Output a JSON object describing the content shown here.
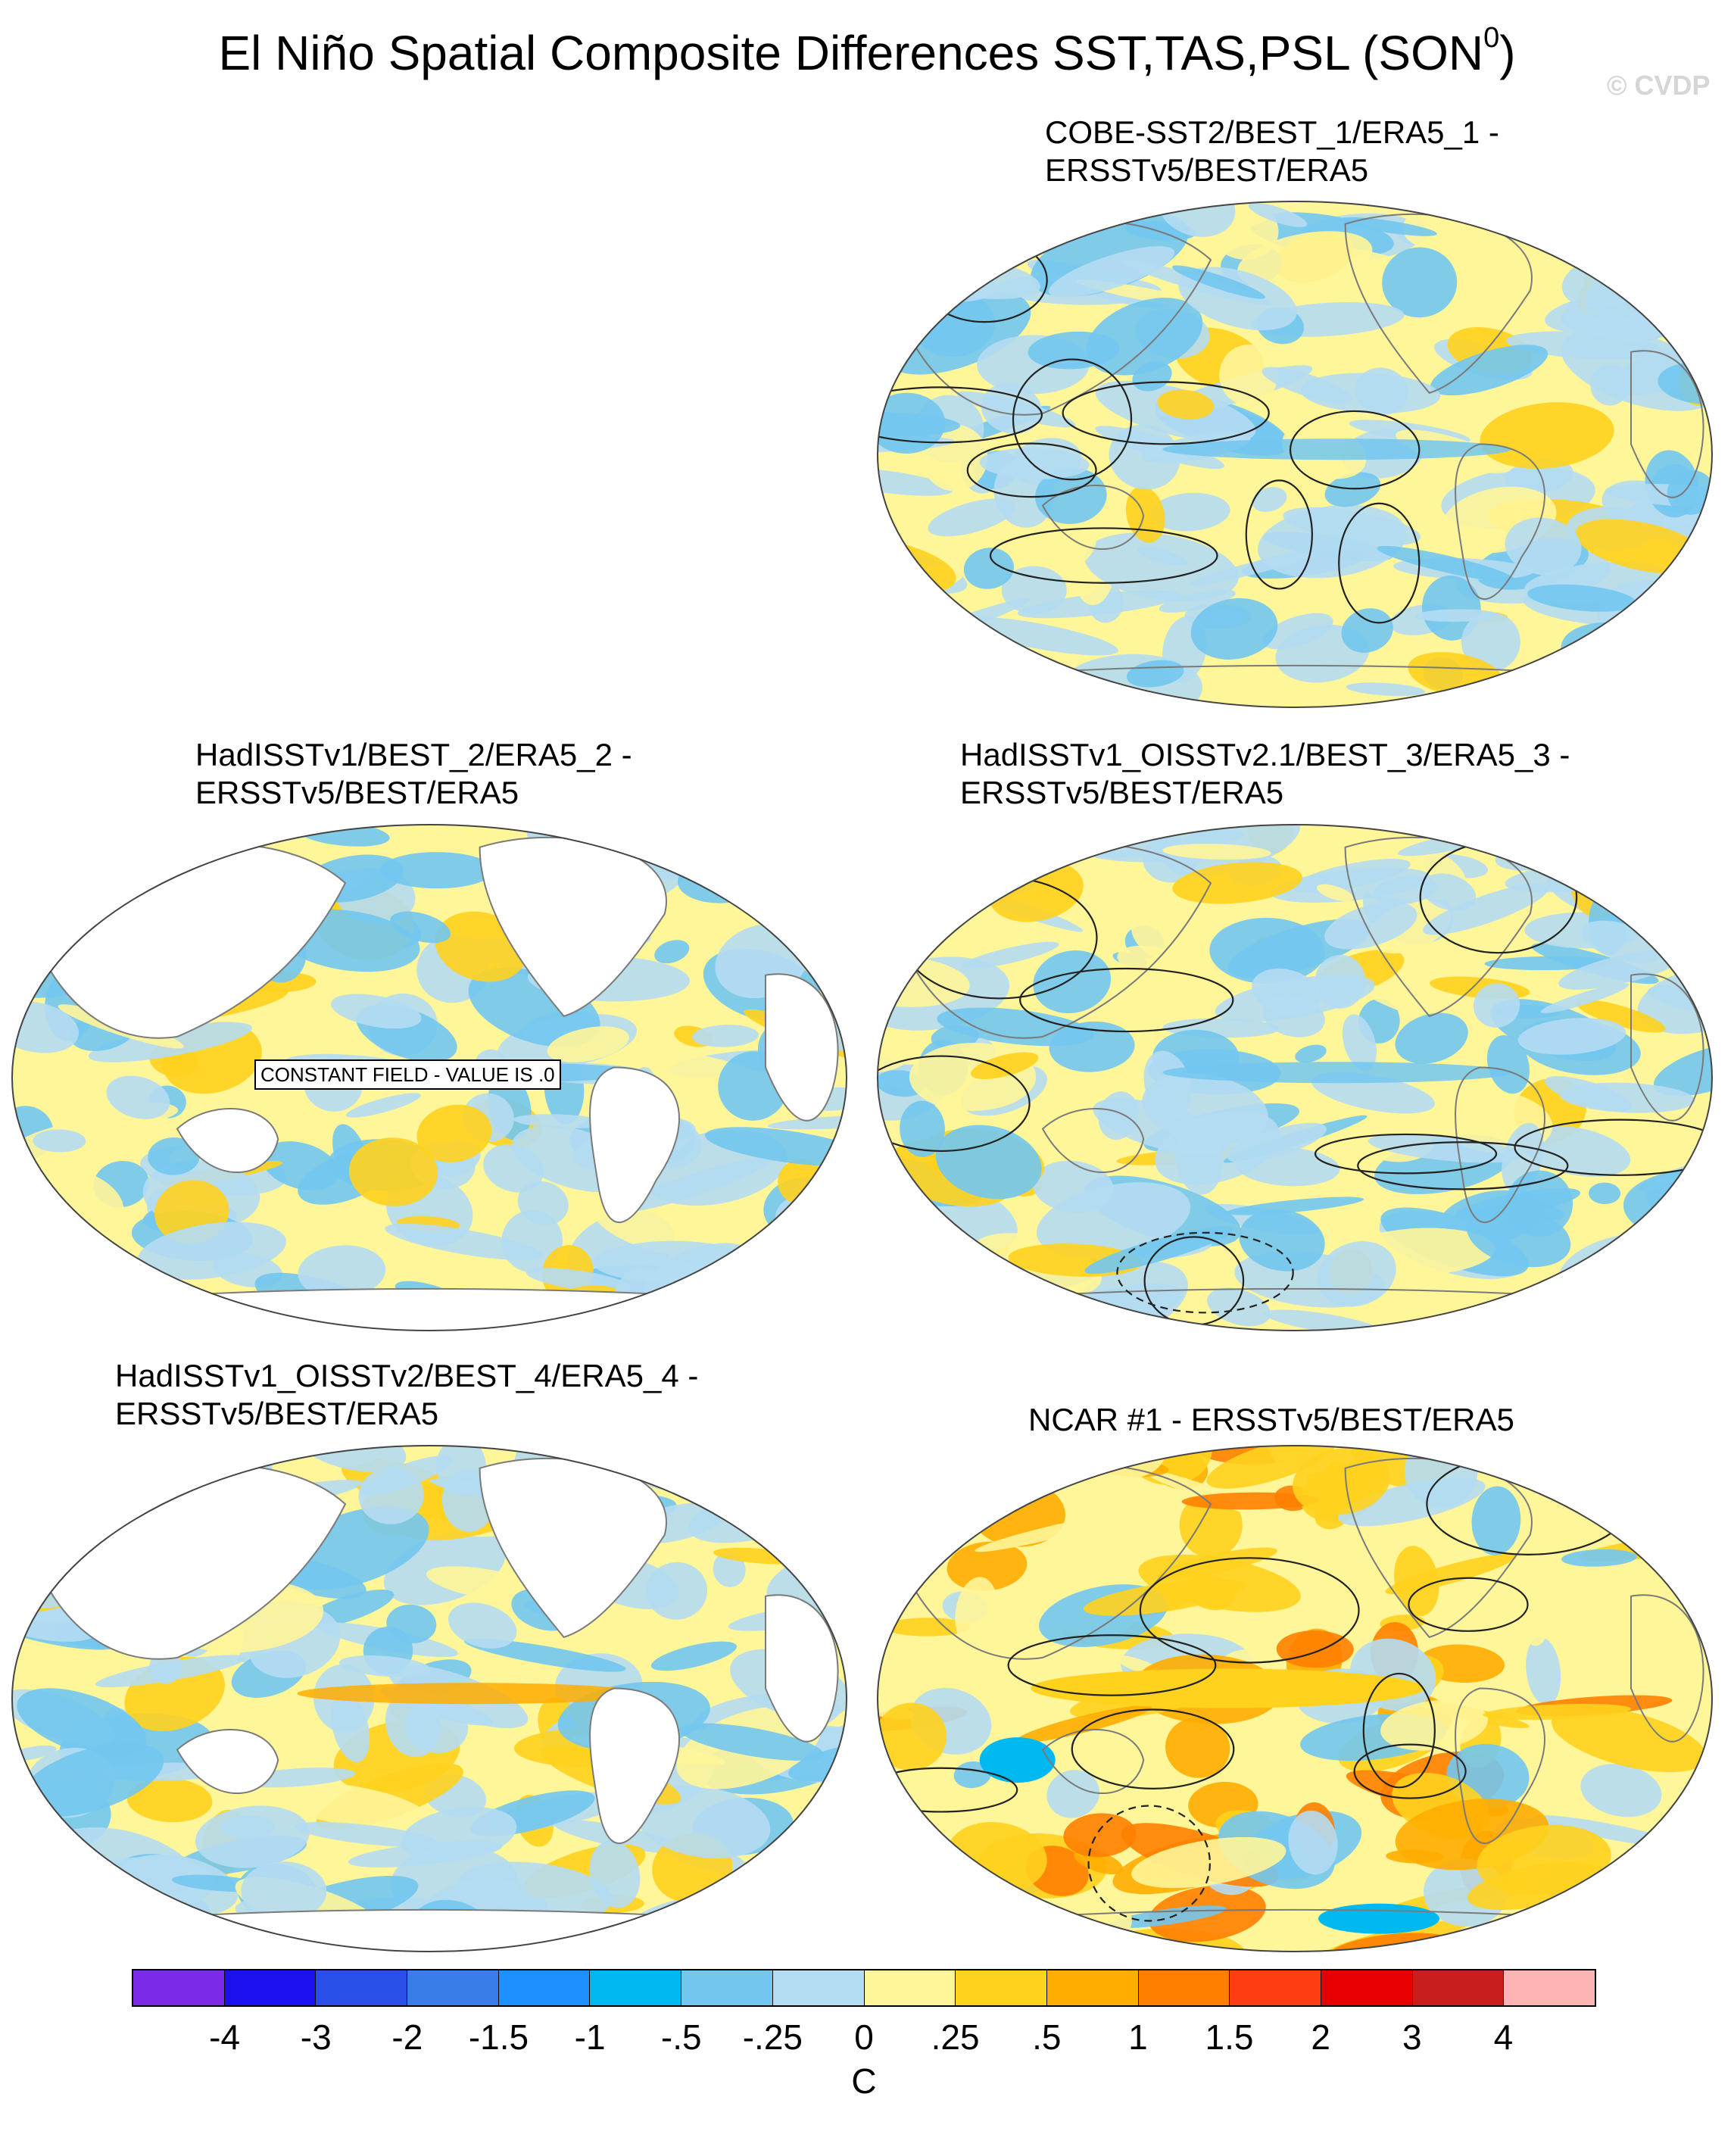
{
  "title": "El Niño Spatial Composite Differences SST,TAS,PSL (SON",
  "title_superscript": "0",
  "title_close": ")",
  "watermark": "© CVDP",
  "panels": [
    {
      "id": "cobe",
      "title_line1": "COBE-SST2/BEST_1/ERA5_1 -",
      "title_line2": "ERSSTv5/BEST/ERA5",
      "pattern": "full",
      "psl_contours": true
    },
    {
      "id": "hadisst",
      "title_line1": "HadISSTv1/BEST_2/ERA5_2 -",
      "title_line2": "ERSSTv5/BEST/ERA5",
      "pattern": "ocean-only",
      "psl_contours": false,
      "constant_field_label": "CONSTANT FIELD - VALUE IS .0"
    },
    {
      "id": "oisst21",
      "title_line1": "HadISSTv1_OISSTv2.1/BEST_3/ERA5_3 -",
      "title_line2": "ERSSTv5/BEST/ERA5",
      "pattern": "full",
      "psl_contours": true
    },
    {
      "id": "oisst2",
      "title_line1": "HadISSTv1_OISSTv2/BEST_4/ERA5_4 -",
      "title_line2": "ERSSTv5/BEST/ERA5",
      "pattern": "ocean-only",
      "psl_contours": false
    },
    {
      "id": "ncar",
      "title_line1": "NCAR #1 - ERSSTv5/BEST/ERA5",
      "title_line2": "",
      "pattern": "warm",
      "psl_contours": true
    }
  ],
  "colorbar": {
    "unit": "C",
    "labels": [
      "-4",
      "-3",
      "-2",
      "-1.5",
      "-1",
      "-.5",
      "-.25",
      "0",
      ".25",
      ".5",
      "1",
      "1.5",
      "2",
      "3",
      "4"
    ],
    "colors": [
      "#7b2be8",
      "#1a10f0",
      "#2a4fe8",
      "#3a7de8",
      "#1f90ff",
      "#00b8f0",
      "#72c6f0",
      "#b4dcf2",
      "#fff599",
      "#ffd21e",
      "#ffad00",
      "#ff7f00",
      "#ff3c14",
      "#e60000",
      "#c81e1e",
      "#ffb4b4"
    ]
  }
}
